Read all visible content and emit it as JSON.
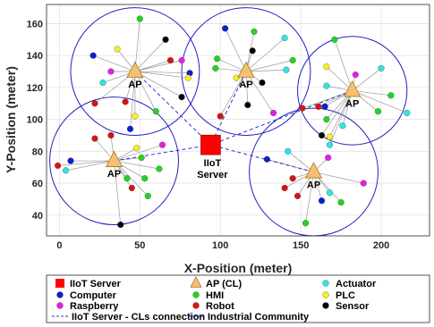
{
  "chart_data": {
    "type": "scatter",
    "xlabel": "X-Position (meter)",
    "ylabel": "Y-Position (meter)",
    "xlim": [
      -8,
      230
    ],
    "ylim": [
      27,
      172
    ],
    "xticks": [
      0,
      50,
      100,
      150,
      200
    ],
    "yticks": [
      40,
      60,
      80,
      100,
      120,
      140,
      160
    ],
    "grid": true,
    "server": {
      "x": 94,
      "y": 84,
      "label_lines": [
        "IIoT",
        "Server"
      ]
    },
    "communities": [
      {
        "center_label": "AP",
        "ap": {
          "x": 47,
          "y": 130
        },
        "radius": 40,
        "devices": [
          {
            "type": "Computer",
            "x": 21,
            "y": 140
          },
          {
            "type": "HMI",
            "x": 50,
            "y": 163
          },
          {
            "type": "PLC",
            "x": 36,
            "y": 144
          },
          {
            "type": "Raspberry",
            "x": 32,
            "y": 130
          },
          {
            "type": "Actuator",
            "x": 27,
            "y": 123
          },
          {
            "type": "Sensor",
            "x": 66,
            "y": 150
          },
          {
            "type": "Robot",
            "x": 69,
            "y": 137
          },
          {
            "type": "Raspberry",
            "x": 76,
            "y": 137
          },
          {
            "type": "Computer",
            "x": 81,
            "y": 129
          },
          {
            "type": "PLC",
            "x": 80,
            "y": 126
          },
          {
            "type": "Sensor",
            "x": 76,
            "y": 114
          },
          {
            "type": "Robot",
            "x": 41,
            "y": 111
          },
          {
            "type": "HMI",
            "x": 60,
            "y": 105
          },
          {
            "type": "Robot",
            "x": 22,
            "y": 110
          },
          {
            "type": "PLC",
            "x": 47,
            "y": 102
          },
          {
            "type": "Computer",
            "x": 44,
            "y": 94
          }
        ]
      },
      {
        "center_label": "AP",
        "ap": {
          "x": 116,
          "y": 130
        },
        "radius": 40,
        "devices": [
          {
            "type": "Computer",
            "x": 103,
            "y": 157
          },
          {
            "type": "HMI",
            "x": 121,
            "y": 155
          },
          {
            "type": "Actuator",
            "x": 140,
            "y": 151
          },
          {
            "type": "Sensor",
            "x": 120,
            "y": 143
          },
          {
            "type": "HMI",
            "x": 98,
            "y": 138
          },
          {
            "type": "HMI",
            "x": 145,
            "y": 137
          },
          {
            "type": "HMI",
            "x": 97,
            "y": 132
          },
          {
            "type": "Actuator",
            "x": 141,
            "y": 131
          },
          {
            "type": "PLC",
            "x": 110,
            "y": 126
          },
          {
            "type": "Sensor",
            "x": 126,
            "y": 123
          },
          {
            "type": "Sensor",
            "x": 117,
            "y": 109
          },
          {
            "type": "Raspberry",
            "x": 133,
            "y": 104
          },
          {
            "type": "Robot",
            "x": 100,
            "y": 102
          }
        ]
      },
      {
        "center_label": "AP",
        "ap": {
          "x": 182,
          "y": 118
        },
        "radius": 34,
        "devices": [
          {
            "type": "HMI",
            "x": 171,
            "y": 150
          },
          {
            "type": "PLC",
            "x": 166,
            "y": 133
          },
          {
            "type": "Raspberry",
            "x": 184,
            "y": 128
          },
          {
            "type": "Actuator",
            "x": 200,
            "y": 132
          },
          {
            "type": "Actuator",
            "x": 166,
            "y": 121
          },
          {
            "type": "HMI",
            "x": 206,
            "y": 115
          },
          {
            "type": "Robot",
            "x": 161,
            "y": 108
          },
          {
            "type": "Computer",
            "x": 165,
            "y": 108
          },
          {
            "type": "HMI",
            "x": 198,
            "y": 105
          },
          {
            "type": "Actuator",
            "x": 216,
            "y": 104
          },
          {
            "type": "Robot",
            "x": 151,
            "y": 107
          },
          {
            "type": "HMI",
            "x": 166,
            "y": 100
          },
          {
            "type": "Actuator",
            "x": 176,
            "y": 96
          },
          {
            "type": "Sensor",
            "x": 163,
            "y": 90
          },
          {
            "type": "PLC",
            "x": 168,
            "y": 89
          },
          {
            "type": "Actuator",
            "x": 168,
            "y": 84
          }
        ]
      },
      {
        "center_label": "AP",
        "ap": {
          "x": 34,
          "y": 74
        },
        "radius": 40,
        "devices": [
          {
            "type": "Robot",
            "x": 32,
            "y": 90
          },
          {
            "type": "Robot",
            "x": 22,
            "y": 88
          },
          {
            "type": "Raspberry",
            "x": 64,
            "y": 84
          },
          {
            "type": "PLC",
            "x": 48,
            "y": 82
          },
          {
            "type": "HMI",
            "x": 51,
            "y": 76
          },
          {
            "type": "Robot",
            "x": -1,
            "y": 71
          },
          {
            "type": "Computer",
            "x": 7,
            "y": 74
          },
          {
            "type": "Actuator",
            "x": 4,
            "y": 68
          },
          {
            "type": "HMI",
            "x": 62,
            "y": 69
          },
          {
            "type": "HMI",
            "x": 42,
            "y": 63
          },
          {
            "type": "HMI",
            "x": 53,
            "y": 63
          },
          {
            "type": "Robot",
            "x": 45,
            "y": 57
          },
          {
            "type": "HMI",
            "x": 55,
            "y": 52
          },
          {
            "type": "Sensor",
            "x": 38,
            "y": 34
          }
        ]
      },
      {
        "center_label": "AP",
        "ap": {
          "x": 158,
          "y": 67
        },
        "radius": 40,
        "devices": [
          {
            "type": "Actuator",
            "x": 142,
            "y": 80
          },
          {
            "type": "Computer",
            "x": 129,
            "y": 75
          },
          {
            "type": "Raspberry",
            "x": 167,
            "y": 76
          },
          {
            "type": "Robot",
            "x": 145,
            "y": 63
          },
          {
            "type": "Robot",
            "x": 140,
            "y": 57
          },
          {
            "type": "Robot",
            "x": 148,
            "y": 52
          },
          {
            "type": "Actuator",
            "x": 168,
            "y": 54
          },
          {
            "type": "Computer",
            "x": 163,
            "y": 49
          },
          {
            "type": "Raspberry",
            "x": 189,
            "y": 60
          },
          {
            "type": "HMI",
            "x": 175,
            "y": 48
          },
          {
            "type": "HMI",
            "x": 153,
            "y": 35
          }
        ]
      }
    ],
    "legend": [
      {
        "label": "IIoT Server",
        "marker": "square",
        "color": "#ff0000"
      },
      {
        "label": "AP (CL)",
        "marker": "triangle",
        "color": "#f5c170"
      },
      {
        "label": "Actuator",
        "marker": "circle",
        "color": "#2ee5e5"
      },
      {
        "label": "Computer",
        "marker": "circle",
        "color": "#0a1fd6"
      },
      {
        "label": "HMI",
        "marker": "circle",
        "color": "#22d422"
      },
      {
        "label": "PLC",
        "marker": "circle",
        "color": "#f5f01f"
      },
      {
        "label": "Raspberry",
        "marker": "circle",
        "color": "#e51ee5"
      },
      {
        "label": "Robot",
        "marker": "circle",
        "color": "#dd1111"
      },
      {
        "label": "Sensor",
        "marker": "circle",
        "color": "#000000"
      },
      {
        "label": "IIoT Server - CLs connection",
        "marker": "dashed-line",
        "color": "#3030d0"
      },
      {
        "label": "Industrial Community",
        "marker": "line",
        "color": "#2020c0"
      }
    ],
    "colors": {
      "Actuator": "#2ee5e5",
      "Computer": "#0a1fd6",
      "HMI": "#22d422",
      "PLC": "#f5f01f",
      "Raspberry": "#e51ee5",
      "Robot": "#dd1111",
      "Sensor": "#000000",
      "server": "#ff0000",
      "ap": "#f5c170",
      "circle": "#2020c0",
      "dashed": "#3030d0",
      "link": "#999999"
    }
  }
}
